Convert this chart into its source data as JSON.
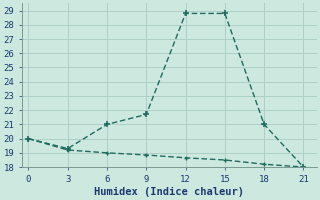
{
  "line1_x": [
    0,
    3,
    6,
    9,
    12,
    15,
    18,
    21
  ],
  "line1_y": [
    20,
    19.3,
    21.0,
    21.7,
    28.8,
    28.8,
    21.0,
    18.0
  ],
  "line2_x": [
    0,
    3,
    6,
    9,
    12,
    15,
    18,
    21
  ],
  "line2_y": [
    20.0,
    19.2,
    19.0,
    18.85,
    18.65,
    18.5,
    18.2,
    18.0
  ],
  "line_color": "#1f6b5e",
  "bg_color": "#cde8df",
  "grid_color": "#aecfc6",
  "xlabel": "Humidex (Indice chaleur)",
  "xlim": [
    -0.5,
    22
  ],
  "ylim": [
    18,
    29.5
  ],
  "xticks": [
    0,
    3,
    6,
    9,
    12,
    15,
    18,
    21
  ],
  "yticks": [
    18,
    19,
    20,
    21,
    22,
    23,
    24,
    25,
    26,
    27,
    28,
    29
  ],
  "marker": "+",
  "markersize": 4,
  "linewidth": 1.0,
  "tick_fontsize": 6.5,
  "xlabel_fontsize": 7.5
}
